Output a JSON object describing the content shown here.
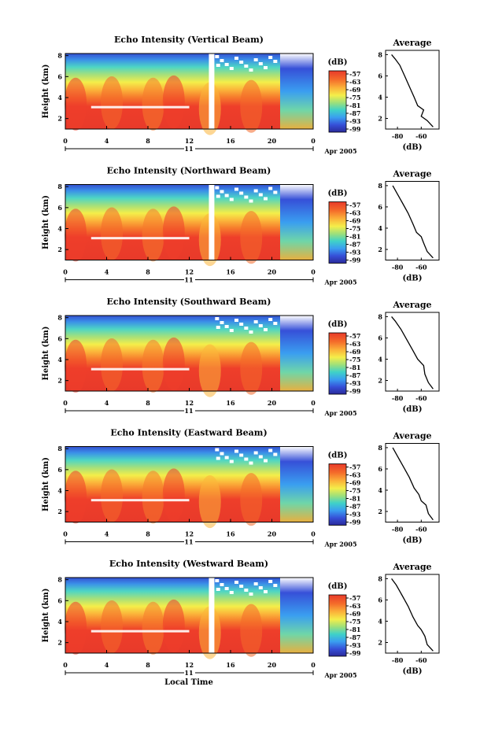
{
  "chart_data": {
    "type": "heatmap",
    "date_label": "Apr 2005",
    "day_label": "11",
    "x_label": "Local Time",
    "x_ticks": [
      "0",
      "4",
      "8",
      "12",
      "16",
      "20",
      "0"
    ],
    "y_label": "Height (km)",
    "y_ticks": [
      "2",
      "4",
      "6",
      "8"
    ],
    "colorbar_unit": "(dB)",
    "colorbar_ticks": [
      "-57",
      "-63",
      "-69",
      "-75",
      "-81",
      "-87",
      "-93",
      "-99"
    ],
    "average_title": "Average",
    "average_xlabel": "(dB)",
    "average_x_ticks": [
      "-80",
      "-60"
    ],
    "average_y_ticks": [
      "2",
      "4",
      "6",
      "8"
    ],
    "panels": [
      {
        "title": "Echo Intensity (Vertical Beam)",
        "average_profile": [
          [
            -50,
            1.2
          ],
          [
            -55,
            1.8
          ],
          [
            -60,
            2.2
          ],
          [
            -58,
            2.8
          ],
          [
            -63,
            3.2
          ],
          [
            -66,
            4.0
          ],
          [
            -70,
            5.0
          ],
          [
            -74,
            6.0
          ],
          [
            -78,
            7.0
          ],
          [
            -82,
            7.6
          ],
          [
            -85,
            8.0
          ]
        ]
      },
      {
        "title": "Echo Intensity (Northward Beam)",
        "average_profile": [
          [
            -50,
            1.2
          ],
          [
            -55,
            1.8
          ],
          [
            -58,
            2.6
          ],
          [
            -60,
            3.2
          ],
          [
            -64,
            3.6
          ],
          [
            -67,
            4.4
          ],
          [
            -71,
            5.4
          ],
          [
            -76,
            6.4
          ],
          [
            -80,
            7.2
          ],
          [
            -84,
            8.0
          ]
        ]
      },
      {
        "title": "Echo Intensity (Southward Beam)",
        "average_profile": [
          [
            -50,
            1.2
          ],
          [
            -54,
            1.8
          ],
          [
            -57,
            2.6
          ],
          [
            -58,
            3.4
          ],
          [
            -63,
            4.0
          ],
          [
            -67,
            4.8
          ],
          [
            -72,
            5.8
          ],
          [
            -77,
            6.8
          ],
          [
            -82,
            7.6
          ],
          [
            -85,
            8.0
          ]
        ]
      },
      {
        "title": "Echo Intensity (Eastward Beam)",
        "average_profile": [
          [
            -50,
            1.2
          ],
          [
            -54,
            1.8
          ],
          [
            -56,
            2.6
          ],
          [
            -60,
            3.0
          ],
          [
            -62,
            3.6
          ],
          [
            -66,
            4.2
          ],
          [
            -70,
            5.2
          ],
          [
            -75,
            6.2
          ],
          [
            -80,
            7.2
          ],
          [
            -84,
            8.0
          ]
        ]
      },
      {
        "title": "Echo Intensity (Westward Beam)",
        "average_profile": [
          [
            -50,
            1.2
          ],
          [
            -55,
            1.8
          ],
          [
            -57,
            2.6
          ],
          [
            -60,
            3.2
          ],
          [
            -63,
            3.6
          ],
          [
            -67,
            4.4
          ],
          [
            -71,
            5.4
          ],
          [
            -76,
            6.4
          ],
          [
            -81,
            7.4
          ],
          [
            -85,
            8.0
          ]
        ]
      }
    ]
  }
}
